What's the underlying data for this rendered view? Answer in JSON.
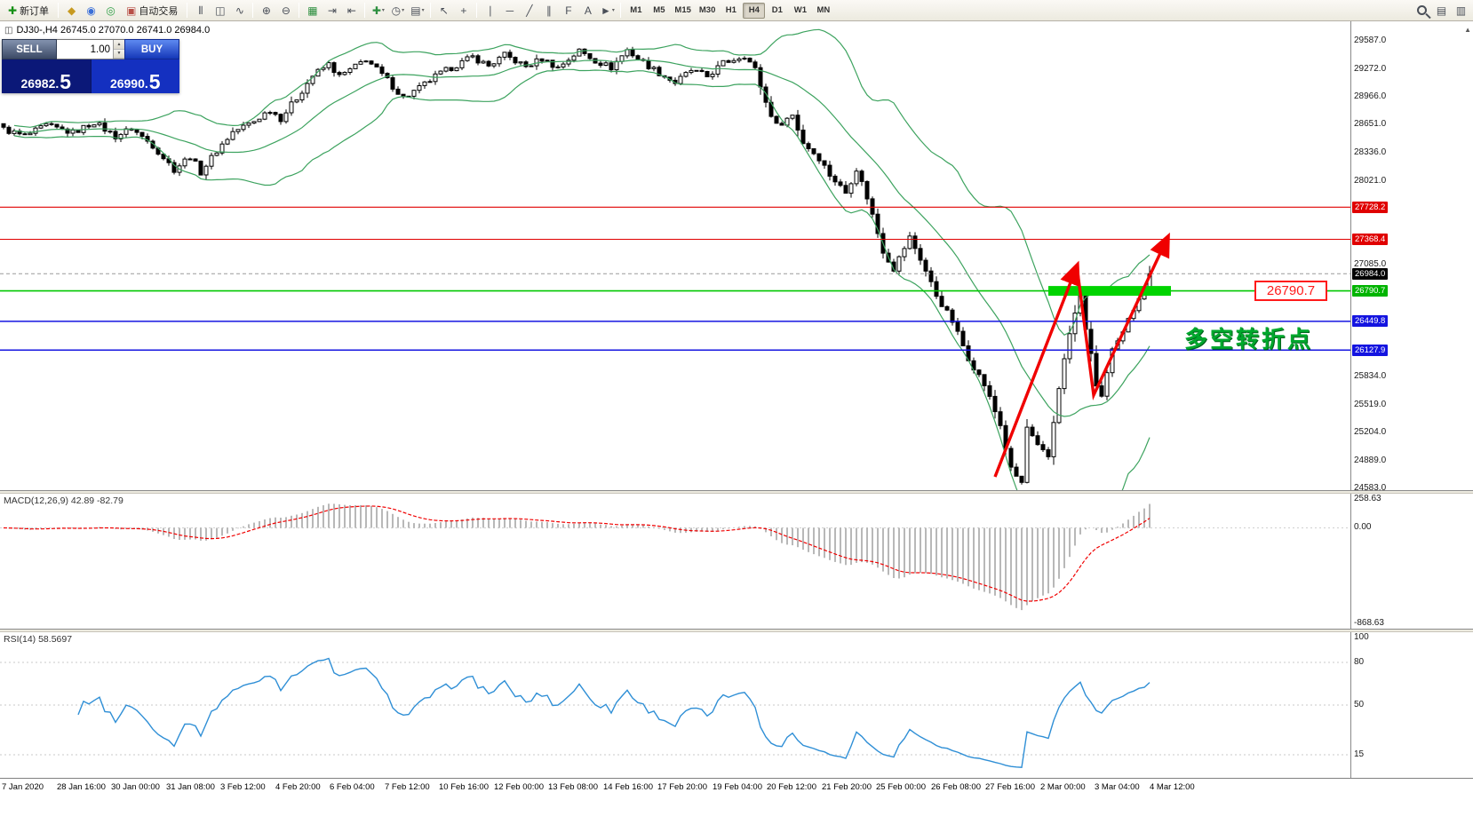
{
  "toolbar": {
    "items": [
      {
        "type": "button",
        "name": "new-order-button",
        "icon": "new-order-icon",
        "glyph": "✚",
        "color": "#159015",
        "label": "新订单"
      },
      {
        "type": "sep"
      },
      {
        "type": "icon",
        "name": "speaker-icon",
        "glyph": "◆",
        "color": "#c79a20"
      },
      {
        "type": "icon",
        "name": "profiles-icon",
        "glyph": "◉",
        "color": "#3a6fd8"
      },
      {
        "type": "icon",
        "name": "refresh-icon",
        "glyph": "◎",
        "color": "#2d9e44"
      },
      {
        "type": "button",
        "name": "autotrade-button",
        "icon": "autotrade-icon",
        "glyph": "▣",
        "color": "#b85047",
        "label": "自动交易"
      },
      {
        "type": "sep"
      },
      {
        "type": "icon",
        "name": "bar-chart-icon",
        "glyph": "⦀",
        "color": "#4a4f58"
      },
      {
        "type": "icon",
        "name": "candlestick-chart-icon",
        "glyph": "◫",
        "color": "#4a4f58"
      },
      {
        "type": "icon",
        "name": "line-chart-icon",
        "glyph": "∿",
        "color": "#4a4f58"
      },
      {
        "type": "sep"
      },
      {
        "type": "icon",
        "name": "zoom-in-icon",
        "glyph": "⊕",
        "color": "#4a4f58"
      },
      {
        "type": "icon",
        "name": "zoom-out-icon",
        "glyph": "⊖",
        "color": "#4a4f58"
      },
      {
        "type": "sep"
      },
      {
        "type": "icon",
        "name": "tile-windows-icon",
        "glyph": "▦",
        "color": "#2d8f3f"
      },
      {
        "type": "icon",
        "name": "auto-scroll-icon",
        "glyph": "⇥",
        "color": "#4a4f58"
      },
      {
        "type": "icon",
        "name": "chart-shift-icon",
        "glyph": "⇤",
        "color": "#4a4f58"
      },
      {
        "type": "sep"
      },
      {
        "type": "icon",
        "name": "add-indicator-icon",
        "glyph": "✚",
        "color": "#2d8f3f",
        "caret": true
      },
      {
        "type": "icon",
        "name": "periods-icon",
        "glyph": "◷",
        "color": "#4a4f58",
        "caret": true
      },
      {
        "type": "icon",
        "name": "templates-icon",
        "glyph": "▤",
        "color": "#4a4f58",
        "caret": true
      },
      {
        "type": "sep"
      },
      {
        "type": "icon",
        "name": "cursor-icon",
        "glyph": "↖",
        "color": "#4a4f58"
      },
      {
        "type": "icon",
        "name": "crosshair-icon",
        "glyph": "+",
        "color": "#4a4f58"
      },
      {
        "type": "sep"
      },
      {
        "type": "icon",
        "name": "vertical-line-icon",
        "glyph": "∣",
        "color": "#4a4f58"
      },
      {
        "type": "icon",
        "name": "horizontal-line-icon",
        "glyph": "─",
        "color": "#4a4f58"
      },
      {
        "type": "icon",
        "name": "trendline-icon",
        "glyph": "╱",
        "color": "#4a4f58"
      },
      {
        "type": "icon",
        "name": "channel-icon",
        "glyph": "∥",
        "color": "#4a4f58"
      },
      {
        "type": "icon",
        "name": "fibonacci-icon",
        "glyph": "F",
        "color": "#4a4f58"
      },
      {
        "type": "icon",
        "name": "text-icon",
        "glyph": "A",
        "color": "#4a4f58"
      },
      {
        "type": "icon",
        "name": "arrow-tools-icon",
        "glyph": "►",
        "color": "#4a4f58",
        "caret": true
      },
      {
        "type": "sep"
      },
      {
        "type": "timeframes"
      },
      {
        "type": "spacer"
      },
      {
        "type": "icon",
        "name": "search-icon",
        "css": "mag"
      },
      {
        "type": "icon",
        "name": "data-window-icon",
        "glyph": "▤",
        "color": "#4a4f58"
      },
      {
        "type": "icon",
        "name": "panels-icon",
        "glyph": "▥",
        "color": "#4a4f58"
      }
    ],
    "timeframes": [
      "M1",
      "M5",
      "M15",
      "M30",
      "H1",
      "H4",
      "D1",
      "W1",
      "MN"
    ],
    "active_timeframe": "H4"
  },
  "symbol_header": "DJ30-,H4  26745.0 27070.0 26741.0 26984.0",
  "trade_panel": {
    "sell_label": "SELL",
    "buy_label": "BUY",
    "volume": "1.00",
    "sell_price": "26982.",
    "sell_price_big": "5",
    "buy_price": "26990.",
    "buy_price_big": "5"
  },
  "annotation": {
    "text": "多空转折点",
    "color": "#00a82d"
  },
  "key_level_tag": "26790.7",
  "price_axis": {
    "ticks": [
      "29587.0",
      "29272.0",
      "28966.0",
      "28651.0",
      "28336.0",
      "28021.0",
      "27085.0",
      "25834.0",
      "25519.0",
      "25204.0",
      "24889.0",
      "24583.0"
    ],
    "levels": [
      {
        "price": 27728.2,
        "label": "27728.2",
        "color": "#e00000",
        "kind": "line"
      },
      {
        "price": 27368.4,
        "label": "27368.4",
        "color": "#e00000",
        "kind": "line"
      },
      {
        "price": 26984.0,
        "label": "26984.0",
        "color": "#000000",
        "kind": "current"
      },
      {
        "price": 26790.7,
        "label": "26790.7",
        "color": "#00b400",
        "kind": "zone"
      },
      {
        "price": 26449.8,
        "label": "26449.8",
        "color": "#1414e0",
        "kind": "line"
      },
      {
        "price": 26127.9,
        "label": "26127.9",
        "color": "#1414e0",
        "kind": "line"
      }
    ]
  },
  "macd": {
    "header": "MACD(12,26,9) 42.89 -82.79",
    "axis_max": "258.63",
    "axis_zero": "0.00",
    "axis_min": "-868.63"
  },
  "rsi": {
    "header": "RSI(14) 58.5697",
    "axis_labels": [
      "100",
      "80",
      "50",
      "15"
    ],
    "level_lines": [
      80,
      50,
      15
    ]
  },
  "time_labels": [
    "7 Jan 2020",
    "28 Jan 16:00",
    "30 Jan 00:00",
    "31 Jan 08:00",
    "3 Feb 12:00",
    "4 Feb 20:00",
    "6 Feb 04:00",
    "7 Feb 12:00",
    "10 Feb 16:00",
    "12 Feb 00:00",
    "13 Feb 08:00",
    "14 Feb 16:00",
    "17 Feb 20:00",
    "19 Feb 04:00",
    "20 Feb 12:00",
    "21 Feb 20:00",
    "25 Feb 00:00",
    "26 Feb 08:00",
    "27 Feb 16:00",
    "2 Mar 00:00",
    "3 Mar 04:00",
    "4 Mar 12:00"
  ],
  "chart_data": {
    "type": "candlestick",
    "symbol": "DJ30-",
    "timeframe": "H4",
    "current_bar": {
      "open": 26745.0,
      "high": 27070.0,
      "low": 26741.0,
      "close": 26984.0
    },
    "bid": 26982.5,
    "ask": 26990.5,
    "visible_price_range": {
      "high": 29587.0,
      "low": 24583.0
    },
    "bar_count": 216,
    "overlays": [
      "Bollinger Bands (20,2)"
    ],
    "sub_indicators": [
      "MACD(12,26,9)",
      "RSI(14)"
    ],
    "close_path_anchors": [
      [
        0,
        28600
      ],
      [
        4,
        28520
      ],
      [
        8,
        28640
      ],
      [
        13,
        28560
      ],
      [
        17,
        28680
      ],
      [
        21,
        28520
      ],
      [
        24,
        28610
      ],
      [
        28,
        28420
      ],
      [
        32,
        28150
      ],
      [
        35,
        28300
      ],
      [
        37,
        28120
      ],
      [
        40,
        28360
      ],
      [
        43,
        28570
      ],
      [
        47,
        28690
      ],
      [
        50,
        28820
      ],
      [
        52,
        28720
      ],
      [
        55,
        28950
      ],
      [
        58,
        29200
      ],
      [
        61,
        29330
      ],
      [
        63,
        29190
      ],
      [
        66,
        29300
      ],
      [
        68,
        29390
      ],
      [
        72,
        29150
      ],
      [
        75,
        28950
      ],
      [
        78,
        29060
      ],
      [
        81,
        29190
      ],
      [
        84,
        29290
      ],
      [
        88,
        29410
      ],
      [
        91,
        29310
      ],
      [
        94,
        29430
      ],
      [
        98,
        29300
      ],
      [
        101,
        29390
      ],
      [
        104,
        29290
      ],
      [
        108,
        29480
      ],
      [
        111,
        29370
      ],
      [
        114,
        29290
      ],
      [
        117,
        29490
      ],
      [
        119,
        29390
      ],
      [
        123,
        29230
      ],
      [
        126,
        29120
      ],
      [
        129,
        29260
      ],
      [
        132,
        29190
      ],
      [
        135,
        29340
      ],
      [
        139,
        29430
      ],
      [
        141,
        29270
      ],
      [
        143,
        28900
      ],
      [
        145,
        28640
      ],
      [
        148,
        28760
      ],
      [
        150,
        28450
      ],
      [
        153,
        28280
      ],
      [
        155,
        28090
      ],
      [
        158,
        27890
      ],
      [
        160,
        28160
      ],
      [
        162,
        27840
      ],
      [
        165,
        27240
      ],
      [
        167,
        27040
      ],
      [
        170,
        27390
      ],
      [
        172,
        27150
      ],
      [
        175,
        26740
      ],
      [
        178,
        26450
      ],
      [
        181,
        26040
      ],
      [
        184,
        25740
      ],
      [
        187,
        25290
      ],
      [
        189,
        24790
      ],
      [
        191,
        24640
      ],
      [
        192,
        25260
      ],
      [
        194,
        25040
      ],
      [
        196,
        24930
      ],
      [
        198,
        25720
      ],
      [
        200,
        26310
      ],
      [
        202,
        26760
      ],
      [
        203,
        26380
      ],
      [
        205,
        25740
      ],
      [
        206,
        25610
      ],
      [
        208,
        26110
      ],
      [
        210,
        26310
      ],
      [
        211,
        26500
      ],
      [
        213,
        26700
      ],
      [
        214,
        26745
      ],
      [
        215,
        26984
      ]
    ]
  }
}
